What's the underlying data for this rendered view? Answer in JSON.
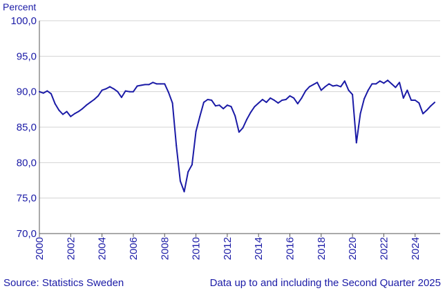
{
  "chart_data": {
    "type": "line",
    "title": "",
    "ylabel": "Percent",
    "xlabel": "",
    "ylim": [
      70,
      100
    ],
    "xlim": [
      2000,
      2025.6
    ],
    "grid": "horizontal",
    "y_ticks": [
      "70,0",
      "75,0",
      "80,0",
      "85,0",
      "90,0",
      "95,0",
      "100,0"
    ],
    "x_ticks": [
      "2000",
      "2002",
      "2004",
      "2006",
      "2008",
      "2010",
      "2012",
      "2014",
      "2016",
      "2018",
      "2020",
      "2022",
      "2024"
    ],
    "series": [
      {
        "color": "#1a1aa6",
        "x": [
          2000.0,
          2000.25,
          2000.5,
          2000.75,
          2001.0,
          2001.25,
          2001.5,
          2001.75,
          2002.0,
          2002.25,
          2002.5,
          2002.75,
          2003.0,
          2003.25,
          2003.5,
          2003.75,
          2004.0,
          2004.25,
          2004.5,
          2004.75,
          2005.0,
          2005.25,
          2005.5,
          2005.75,
          2006.0,
          2006.25,
          2006.5,
          2006.75,
          2007.0,
          2007.25,
          2007.5,
          2007.75,
          2008.0,
          2008.25,
          2008.5,
          2008.75,
          2009.0,
          2009.25,
          2009.5,
          2009.75,
          2010.0,
          2010.25,
          2010.5,
          2010.75,
          2011.0,
          2011.25,
          2011.5,
          2011.75,
          2012.0,
          2012.25,
          2012.5,
          2012.75,
          2013.0,
          2013.25,
          2013.5,
          2013.75,
          2014.0,
          2014.25,
          2014.5,
          2014.75,
          2015.0,
          2015.25,
          2015.5,
          2015.75,
          2016.0,
          2016.25,
          2016.5,
          2016.75,
          2017.0,
          2017.25,
          2017.5,
          2017.75,
          2018.0,
          2018.25,
          2018.5,
          2018.75,
          2019.0,
          2019.25,
          2019.5,
          2019.75,
          2020.0,
          2020.25,
          2020.5,
          2020.75,
          2021.0,
          2021.25,
          2021.5,
          2021.75,
          2022.0,
          2022.25,
          2022.5,
          2022.75,
          2023.0,
          2023.25,
          2023.5,
          2023.75,
          2024.0,
          2024.25,
          2024.5,
          2024.75,
          2025.0,
          2025.25
        ],
        "values": [
          90.0,
          89.8,
          90.1,
          89.7,
          88.3,
          87.4,
          86.8,
          87.2,
          86.5,
          86.9,
          87.2,
          87.6,
          88.1,
          88.5,
          88.9,
          89.4,
          90.2,
          90.4,
          90.7,
          90.4,
          90.0,
          89.2,
          90.1,
          90.0,
          90.0,
          90.8,
          90.9,
          91.0,
          91.0,
          91.3,
          91.1,
          91.1,
          91.1,
          89.9,
          88.4,
          82.4,
          77.4,
          75.9,
          78.7,
          79.7,
          84.4,
          86.5,
          88.5,
          88.9,
          88.8,
          88.0,
          88.1,
          87.6,
          88.1,
          87.9,
          86.6,
          84.3,
          84.9,
          86.1,
          87.1,
          87.9,
          88.4,
          88.9,
          88.5,
          89.1,
          88.8,
          88.4,
          88.8,
          88.9,
          89.4,
          89.1,
          88.3,
          89.1,
          90.1,
          90.7,
          91.0,
          91.3,
          90.2,
          90.7,
          91.1,
          90.8,
          90.9,
          90.7,
          91.5,
          90.2,
          89.6,
          82.8,
          86.9,
          89.0,
          90.2,
          91.1,
          91.1,
          91.5,
          91.2,
          91.6,
          91.1,
          90.6,
          91.3,
          89.1,
          90.2,
          88.8,
          88.8,
          88.4,
          86.9,
          87.4,
          88.0,
          88.5
        ]
      }
    ]
  },
  "footer": {
    "source": "Source: Statistics Sweden",
    "updated": "Data up to and including the Second Quarter 2025"
  }
}
